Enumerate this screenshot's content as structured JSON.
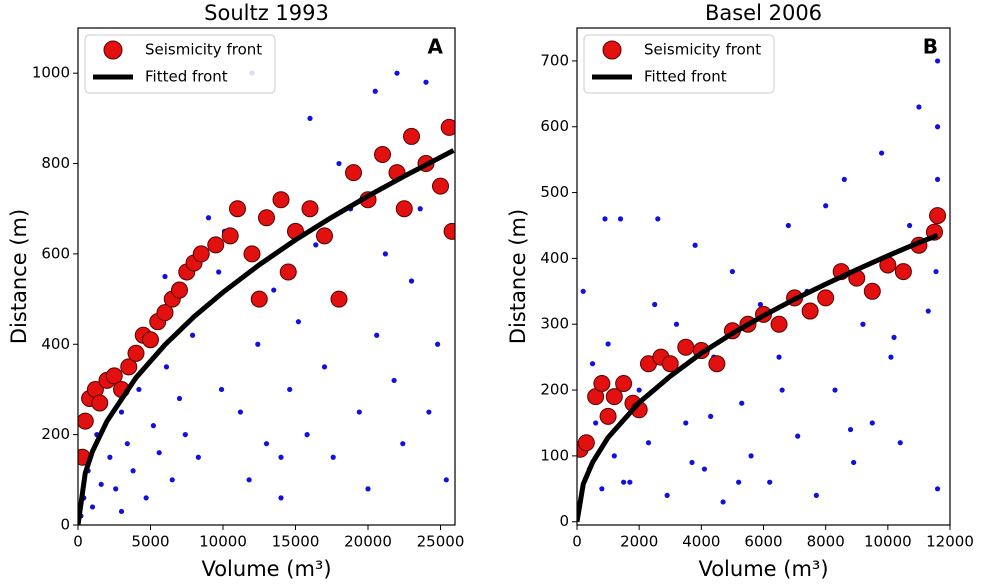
{
  "chart_data": [
    {
      "type": "scatter",
      "title": "Soultz 1993",
      "panel_label": "A",
      "x_label": "Volume (m³)",
      "y_label": "Distance (m)",
      "xlim": [
        0,
        26000
      ],
      "ylim": [
        0,
        1100
      ],
      "xticks": [
        0,
        5000,
        10000,
        15000,
        20000,
        25000
      ],
      "yticks": [
        0,
        200,
        400,
        600,
        800,
        1000
      ],
      "events": {
        "color": "#1010e0",
        "x": [
          200,
          400,
          700,
          1000,
          1300,
          1600,
          2200,
          2600,
          3000,
          3400,
          3800,
          4200,
          4700,
          5200,
          5600,
          6100,
          6500,
          7000,
          7400,
          7900,
          8300,
          9700,
          9900,
          10100,
          11200,
          11800,
          12400,
          13000,
          13500,
          14000,
          14600,
          15200,
          15800,
          16400,
          17000,
          17600,
          18200,
          18800,
          19400,
          20000,
          20600,
          21200,
          21800,
          22400,
          23000,
          23600,
          24200,
          24800,
          25400,
          25900,
          9000,
          12000,
          16000,
          20500,
          24000,
          3000,
          6000,
          18000,
          22000,
          14000
        ],
        "values": [
          20,
          60,
          120,
          40,
          200,
          90,
          150,
          80,
          250,
          180,
          120,
          300,
          60,
          220,
          160,
          350,
          100,
          280,
          200,
          420,
          150,
          560,
          300,
          650,
          250,
          100,
          400,
          180,
          520,
          60,
          300,
          450,
          200,
          620,
          350,
          150,
          500,
          700,
          250,
          80,
          420,
          600,
          320,
          180,
          540,
          700,
          250,
          400,
          100,
          650,
          680,
          1000,
          900,
          960,
          980,
          30,
          550,
          800,
          1000,
          150
        ]
      },
      "series": [
        {
          "name": "Seismicity front",
          "type": "scatter",
          "color": "#e31010",
          "x": [
            300,
            500,
            800,
            1200,
            1500,
            2000,
            2500,
            3000,
            3500,
            4000,
            4500,
            5000,
            5500,
            6000,
            6500,
            7000,
            7500,
            8000,
            8500,
            9500,
            10500,
            11000,
            12000,
            12500,
            13000,
            14000,
            14500,
            15000,
            16000,
            17000,
            18000,
            19000,
            20000,
            21000,
            22000,
            22500,
            23000,
            24000,
            25000,
            25600,
            25800
          ],
          "values": [
            150,
            230,
            280,
            300,
            270,
            320,
            330,
            300,
            350,
            380,
            420,
            410,
            450,
            470,
            500,
            520,
            560,
            580,
            600,
            620,
            640,
            700,
            600,
            500,
            680,
            720,
            560,
            650,
            700,
            640,
            500,
            780,
            720,
            820,
            780,
            700,
            860,
            800,
            750,
            880,
            650
          ]
        },
        {
          "name": "Fitted front",
          "type": "line",
          "color": "#000000",
          "x": [
            0,
            500,
            1000,
            2000,
            4000,
            6000,
            8000,
            10000,
            12500,
            15000,
            17500,
            20000,
            22500,
            25900
          ],
          "values": [
            0,
            115,
            163,
            230,
            326,
            399,
            461,
            515,
            576,
            631,
            681,
            728,
            772,
            829
          ]
        }
      ]
    },
    {
      "type": "scatter",
      "title": "Basel 2006",
      "panel_label": "B",
      "x_label": "Volume (m³)",
      "y_label": "Distance (m)",
      "xlim": [
        0,
        12000
      ],
      "ylim": [
        -5,
        750
      ],
      "xticks": [
        0,
        2000,
        4000,
        6000,
        8000,
        10000,
        12000
      ],
      "yticks": [
        0,
        100,
        200,
        300,
        400,
        500,
        600,
        700
      ],
      "events": {
        "color": "#1010e0",
        "x": [
          100,
          200,
          400,
          600,
          800,
          1000,
          1200,
          1400,
          1700,
          2000,
          2300,
          2600,
          2900,
          3200,
          3500,
          3800,
          4100,
          4400,
          4700,
          5000,
          5300,
          5600,
          5900,
          6200,
          6500,
          6800,
          7100,
          7400,
          7700,
          8000,
          8300,
          8600,
          8900,
          9200,
          9500,
          9800,
          10100,
          10400,
          10700,
          11000,
          11300,
          11600,
          11600,
          11600,
          11600,
          11550,
          500,
          1500,
          2500,
          3700,
          5200,
          6600,
          8800,
          10200,
          900,
          4300
        ],
        "values": [
          30,
          350,
          80,
          150,
          50,
          270,
          100,
          460,
          60,
          200,
          120,
          460,
          40,
          300,
          150,
          420,
          80,
          250,
          30,
          380,
          180,
          100,
          330,
          60,
          250,
          450,
          130,
          350,
          40,
          480,
          200,
          520,
          90,
          300,
          150,
          560,
          250,
          120,
          450,
          630,
          320,
          700,
          600,
          520,
          50,
          380,
          240,
          60,
          330,
          90,
          60,
          200,
          140,
          280,
          460,
          160
        ]
      },
      "series": [
        {
          "name": "Seismicity front",
          "type": "scatter",
          "color": "#e31010",
          "x": [
            100,
            300,
            600,
            800,
            1000,
            1200,
            1500,
            1800,
            2000,
            2300,
            2700,
            3000,
            3500,
            4000,
            4500,
            5000,
            5500,
            6000,
            6500,
            7000,
            7500,
            8000,
            8500,
            9000,
            9500,
            10000,
            10500,
            11000,
            11500,
            11600
          ],
          "values": [
            110,
            120,
            190,
            210,
            160,
            190,
            210,
            180,
            170,
            240,
            250,
            240,
            265,
            260,
            240,
            290,
            300,
            315,
            300,
            340,
            320,
            340,
            380,
            370,
            350,
            390,
            380,
            420,
            440,
            465
          ]
        },
        {
          "name": "Fitted front",
          "type": "line",
          "color": "#000000",
          "x": [
            0,
            200,
            500,
            1000,
            2000,
            3000,
            4000,
            5000,
            6000,
            7000,
            8000,
            9000,
            10000,
            11000,
            11600
          ],
          "values": [
            0,
            57,
            90,
            128,
            181,
            221,
            256,
            286,
            313,
            338,
            361,
            383,
            404,
            424,
            435
          ]
        }
      ]
    }
  ]
}
